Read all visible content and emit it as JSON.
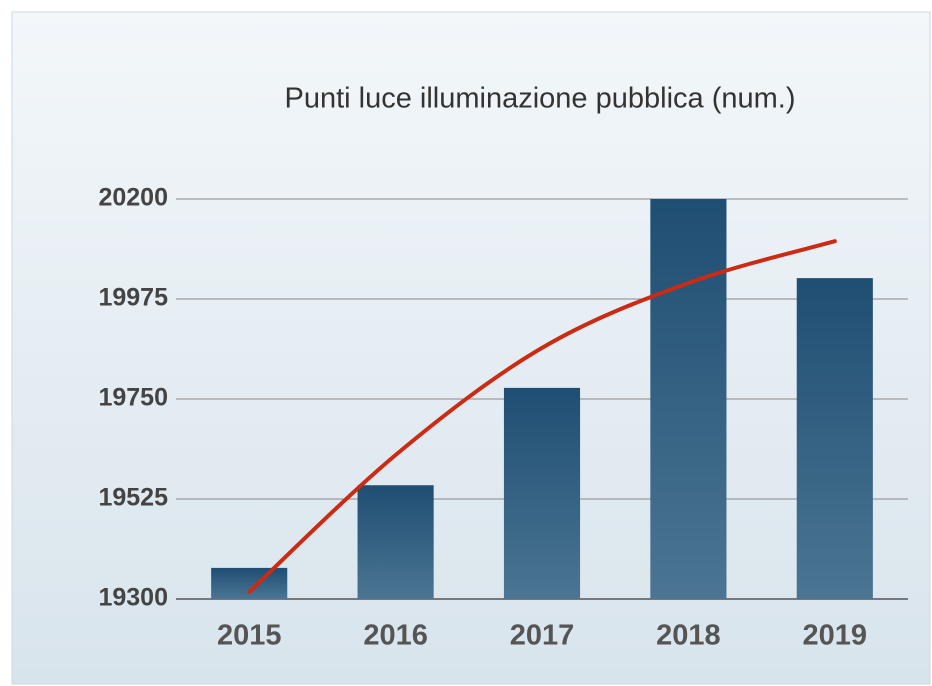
{
  "chart_data": {
    "type": "bar",
    "title": "Punti luce illuminazione pubblica (num.)",
    "categories": [
      "2015",
      "2016",
      "2017",
      "2018",
      "2019"
    ],
    "values": [
      19370,
      19556,
      19775,
      20200,
      20022
    ],
    "color": "#1f4e73",
    "trendline": {
      "color": "#cc2a12",
      "values": [
        19316,
        19624,
        19865,
        20011,
        20105
      ]
    },
    "ylim": [
      19300,
      20200
    ],
    "yticks": [
      19300,
      19525,
      19750,
      19975,
      20200
    ],
    "grid": true
  }
}
